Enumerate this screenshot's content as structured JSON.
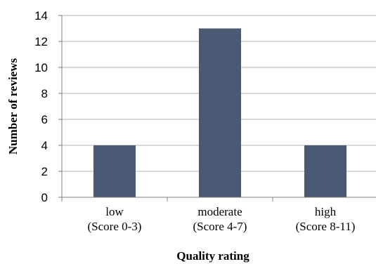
{
  "chart_data": {
    "type": "bar",
    "title": "",
    "xlabel": "Quality rating",
    "ylabel": "Number of reviews",
    "categories": [
      [
        "low",
        "(Score 0-3)"
      ],
      [
        "moderate",
        "(Score 4-7)"
      ],
      [
        "high",
        "(Score 8-11)"
      ]
    ],
    "values": [
      4,
      13,
      4
    ],
    "ylim": [
      0,
      14
    ],
    "yticks": [
      "0",
      "2",
      "4",
      "6",
      "8",
      "10",
      "12",
      "14"
    ],
    "grid": true,
    "legend": "none",
    "bar_color": "#4a5a74"
  }
}
